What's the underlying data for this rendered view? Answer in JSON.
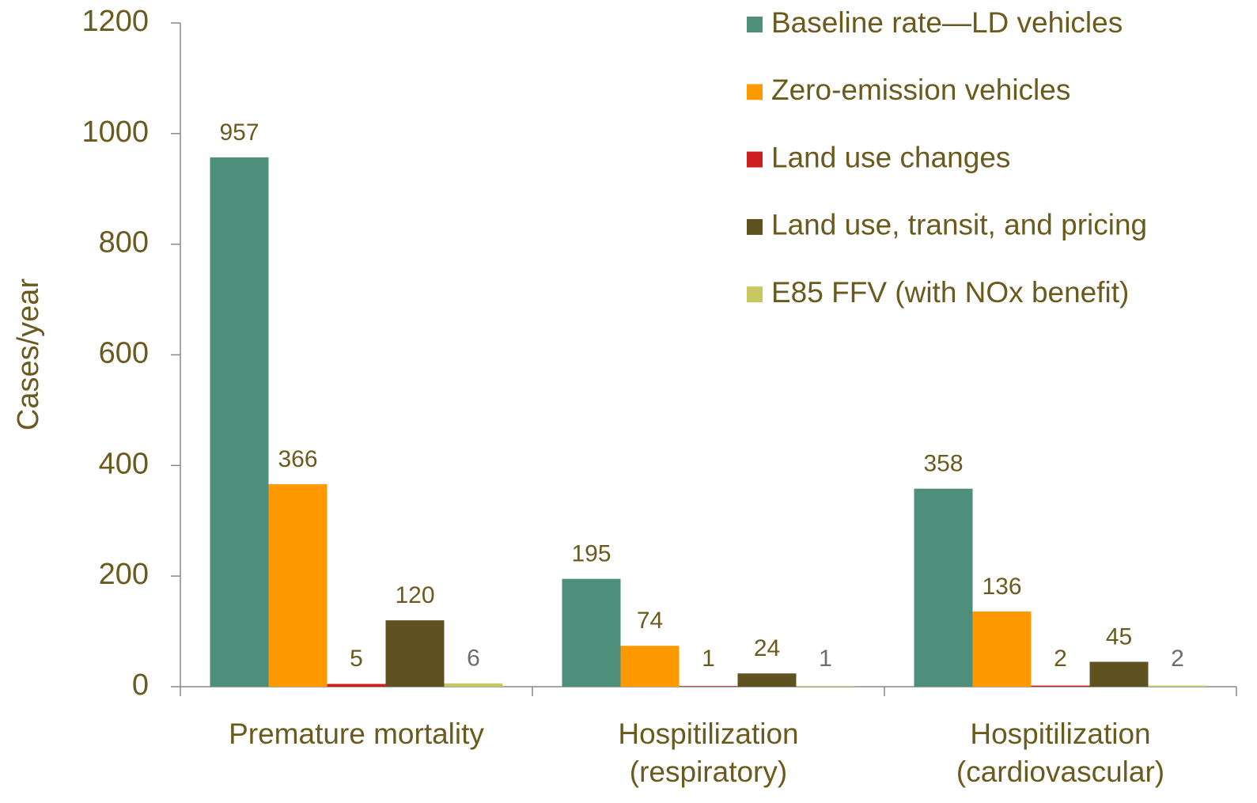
{
  "chart_data": {
    "type": "bar",
    "y_label": "Cases/year",
    "categories": [
      "Premature mortality",
      "Hospitilization\n(respiratory)",
      "Hospitilization\n(cardiovascular)"
    ],
    "series": [
      {
        "name": "Baseline rate—LD vehicles",
        "color": "#4e8f7c",
        "values": [
          957,
          195,
          358
        ]
      },
      {
        "name": "Zero-emission vehicles",
        "color": "#ff9900",
        "values": [
          366,
          74,
          136
        ]
      },
      {
        "name": "Land use changes",
        "color": "#cc1f1f",
        "values": [
          5,
          1,
          2
        ]
      },
      {
        "name": "Land use, transit, and pricing",
        "color": "#5e5220",
        "values": [
          120,
          24,
          45
        ]
      },
      {
        "name": "E85 FFV (with NOx benefit)",
        "color": "#c8c860",
        "values": [
          6,
          1,
          2
        ]
      }
    ],
    "ylim": [
      0,
      1200
    ],
    "yticks": [
      0,
      200,
      400,
      600,
      800,
      1000,
      1200
    ],
    "legend": "top-right"
  }
}
